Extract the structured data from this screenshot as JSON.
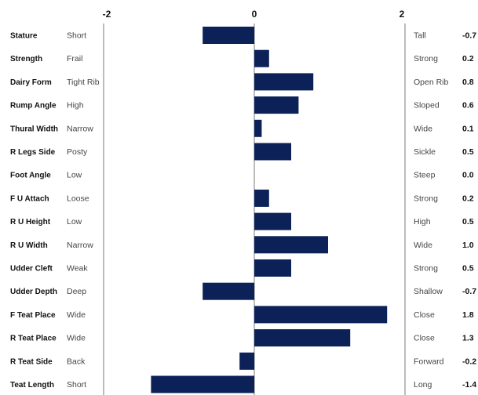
{
  "chart_data": {
    "type": "bar",
    "orientation": "horizontal",
    "bar_color": "#0b2158",
    "axis_line_color": "#bdbdbd",
    "xlim": [
      -2,
      2
    ],
    "ticks": [
      "-2",
      "0",
      "2"
    ],
    "rows": [
      {
        "trait": "Stature",
        "low": "Short",
        "high": "Tall",
        "value": -0.7,
        "display": "-0.7"
      },
      {
        "trait": "Strength",
        "low": "Frail",
        "high": "Strong",
        "value": 0.2,
        "display": "0.2"
      },
      {
        "trait": "Dairy Form",
        "low": "Tight Rib",
        "high": "Open Rib",
        "value": 0.8,
        "display": "0.8"
      },
      {
        "trait": "Rump Angle",
        "low": "High",
        "high": "Sloped",
        "value": 0.6,
        "display": "0.6"
      },
      {
        "trait": "Thural Width",
        "low": "Narrow",
        "high": "Wide",
        "value": 0.1,
        "display": "0.1"
      },
      {
        "trait": "R Legs Side",
        "low": "Posty",
        "high": "Sickle",
        "value": 0.5,
        "display": "0.5"
      },
      {
        "trait": "Foot Angle",
        "low": "Low",
        "high": "Steep",
        "value": 0.0,
        "display": "0.0"
      },
      {
        "trait": "F U Attach",
        "low": "Loose",
        "high": "Strong",
        "value": 0.2,
        "display": "0.2"
      },
      {
        "trait": "R U Height",
        "low": "Low",
        "high": "High",
        "value": 0.5,
        "display": "0.5"
      },
      {
        "trait": "R U Width",
        "low": "Narrow",
        "high": "Wide",
        "value": 1.0,
        "display": "1.0"
      },
      {
        "trait": "Udder Cleft",
        "low": "Weak",
        "high": "Strong",
        "value": 0.5,
        "display": "0.5"
      },
      {
        "trait": "Udder Depth",
        "low": "Deep",
        "high": "Shallow",
        "value": -0.7,
        "display": "-0.7"
      },
      {
        "trait": "F Teat Place",
        "low": "Wide",
        "high": "Close",
        "value": 1.8,
        "display": "1.8"
      },
      {
        "trait": "R Teat Place",
        "low": "Wide",
        "high": "Close",
        "value": 1.3,
        "display": "1.3"
      },
      {
        "trait": "R Teat Side",
        "low": "Back",
        "high": "Forward",
        "value": -0.2,
        "display": "-0.2"
      },
      {
        "trait": "Teat Length",
        "low": "Short",
        "high": "Long",
        "value": -1.4,
        "display": "-1.4"
      }
    ]
  }
}
